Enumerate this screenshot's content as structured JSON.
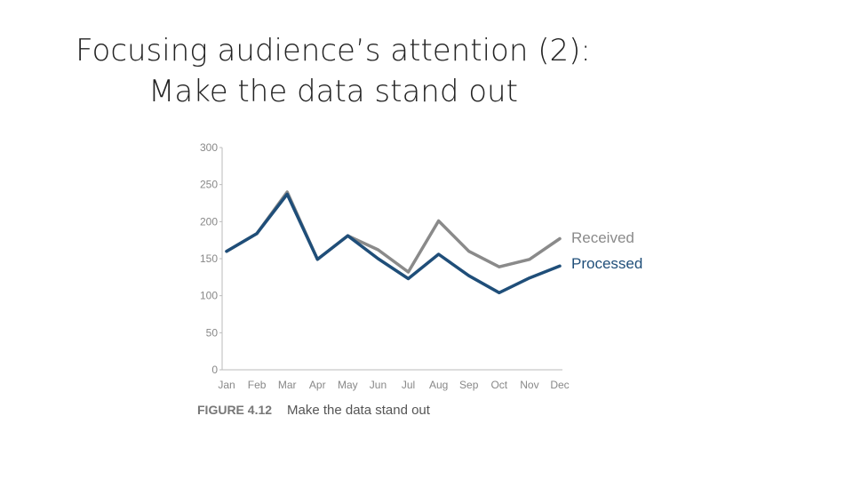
{
  "slide": {
    "title_line1": "Focusing audience’s attention (2):",
    "title_line2": "Make the data stand out"
  },
  "chart_data": {
    "type": "line",
    "categories": [
      "Jan",
      "Feb",
      "Mar",
      "Apr",
      "May",
      "Jun",
      "Jul",
      "Aug",
      "Sep",
      "Oct",
      "Nov",
      "Dec"
    ],
    "series": [
      {
        "name": "Received",
        "values": [
          160,
          184,
          240,
          149,
          181,
          162,
          132,
          201,
          160,
          139,
          149,
          177
        ],
        "color": "#8a8a8a"
      },
      {
        "name": "Processed",
        "values": [
          160,
          184,
          237,
          149,
          181,
          150,
          123,
          156,
          127,
          104,
          124,
          140
        ],
        "color": "#1f4e79"
      }
    ],
    "yticks": [
      0,
      50,
      100,
      150,
      200,
      250,
      300
    ],
    "ylim": [
      0,
      300
    ],
    "grid": false,
    "legend": "right, at line ends",
    "caption_number": "FIGURE 4.12",
    "caption_text": "Make the data stand out"
  }
}
